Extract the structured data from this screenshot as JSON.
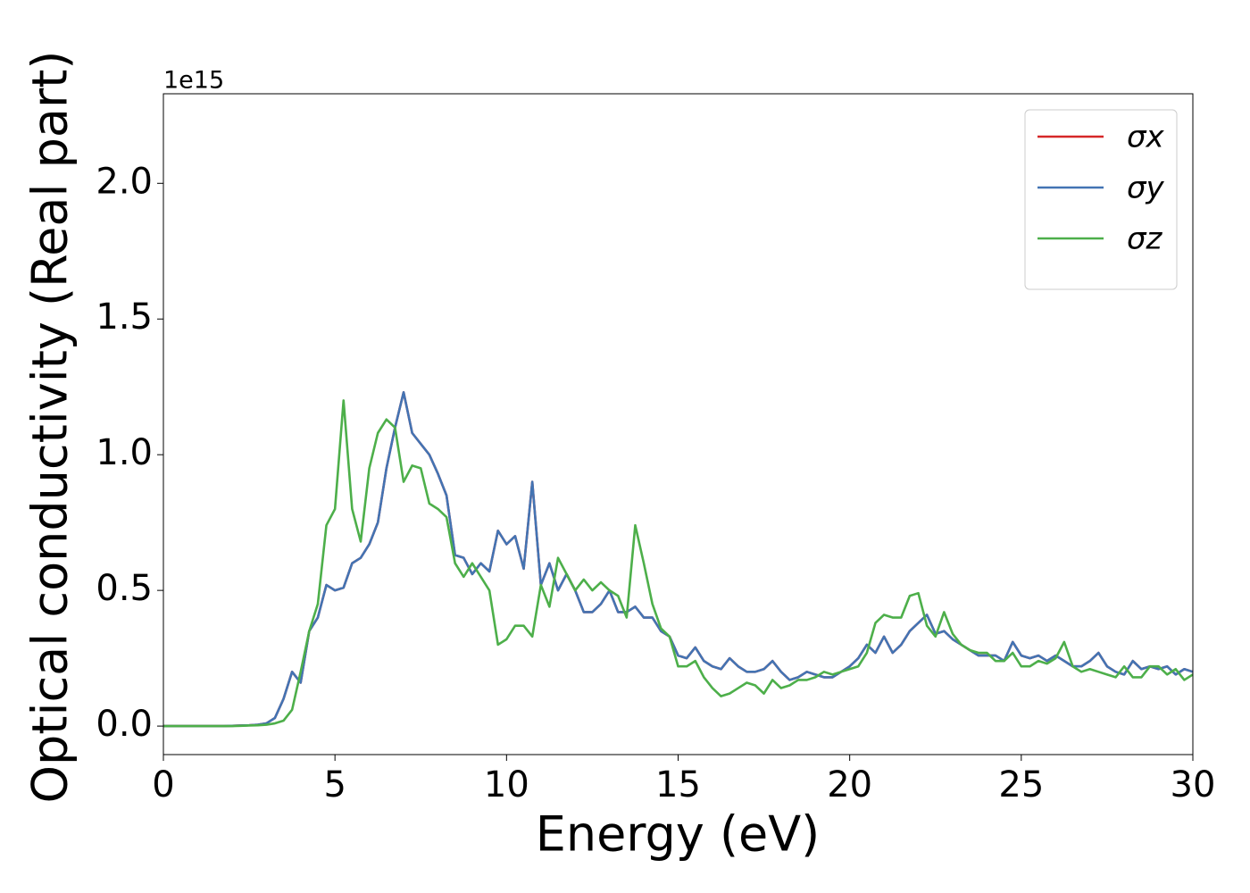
{
  "chart_data": {
    "type": "line",
    "xlabel": "Energy (eV)",
    "ylabel": "Optical conductivity (Real part)",
    "y_offset_label": "1e15",
    "xlim": [
      0,
      30
    ],
    "ylim": [
      -0.105,
      2.33
    ],
    "xticks": [
      0,
      5,
      10,
      15,
      20,
      25,
      30
    ],
    "yticks": [
      {
        "value": 0,
        "label": "0.0"
      },
      0.5,
      {
        "value": 1,
        "label": "1.0"
      },
      1.5,
      {
        "value": 2,
        "label": "2.0"
      }
    ],
    "legend": "upper right",
    "x": [
      0,
      0.25,
      0.5,
      0.75,
      1,
      1.25,
      1.5,
      1.75,
      2,
      2.25,
      2.5,
      2.75,
      3,
      3.25,
      3.5,
      3.75,
      4,
      4.25,
      4.5,
      4.75,
      5,
      5.25,
      5.5,
      5.75,
      6,
      6.25,
      6.5,
      6.75,
      7,
      7.25,
      7.5,
      7.75,
      8,
      8.25,
      8.5,
      8.75,
      9,
      9.25,
      9.5,
      9.75,
      10,
      10.25,
      10.5,
      10.75,
      11,
      11.25,
      11.5,
      11.75,
      12,
      12.25,
      12.5,
      12.75,
      13,
      13.25,
      13.5,
      13.75,
      14,
      14.25,
      14.5,
      14.75,
      15,
      15.25,
      15.5,
      15.75,
      16,
      16.25,
      16.5,
      16.75,
      17,
      17.25,
      17.5,
      17.75,
      18,
      18.25,
      18.5,
      18.75,
      19,
      19.25,
      19.5,
      19.75,
      20,
      20.25,
      20.5,
      20.75,
      21,
      21.25,
      21.5,
      21.75,
      22,
      22.25,
      22.5,
      22.75,
      23,
      23.25,
      23.5,
      23.75,
      24,
      24.25,
      24.5,
      24.75,
      25,
      25.25,
      25.5,
      25.75,
      26,
      26.25,
      26.5,
      26.75,
      27,
      27.25,
      27.5,
      27.75,
      28,
      28.25,
      28.5,
      28.75,
      29,
      29.25,
      29.5,
      29.75,
      30
    ],
    "series": [
      {
        "name": "σx",
        "color": "#d62728",
        "values": [
          0,
          0,
          0,
          0,
          0,
          0,
          0,
          0,
          0.001,
          0.002,
          0.003,
          0.005,
          0.01,
          0.03,
          0.1,
          0.2,
          0.16,
          0.35,
          0.4,
          0.52,
          0.5,
          0.51,
          0.6,
          0.62,
          0.67,
          0.75,
          0.95,
          1.1,
          1.23,
          1.08,
          1.04,
          1.0,
          0.93,
          0.85,
          0.63,
          0.62,
          0.56,
          0.6,
          0.57,
          0.72,
          0.67,
          0.7,
          0.58,
          0.9,
          0.52,
          0.6,
          0.5,
          0.56,
          0.5,
          0.42,
          0.42,
          0.45,
          0.5,
          0.42,
          0.42,
          0.44,
          0.4,
          0.4,
          0.35,
          0.33,
          0.26,
          0.25,
          0.29,
          0.24,
          0.22,
          0.21,
          0.25,
          0.22,
          0.2,
          0.2,
          0.21,
          0.24,
          0.2,
          0.17,
          0.18,
          0.2,
          0.19,
          0.18,
          0.18,
          0.2,
          0.22,
          0.25,
          0.3,
          0.27,
          0.33,
          0.27,
          0.3,
          0.35,
          0.38,
          0.41,
          0.34,
          0.35,
          0.32,
          0.3,
          0.28,
          0.26,
          0.26,
          0.26,
          0.24,
          0.31,
          0.26,
          0.25,
          0.26,
          0.24,
          0.26,
          0.24,
          0.22,
          0.22,
          0.24,
          0.27,
          0.22,
          0.2,
          0.19,
          0.24,
          0.21,
          0.22,
          0.21,
          0.22,
          0.19,
          0.21,
          0.2
        ]
      },
      {
        "name": "σy",
        "color": "#4374b3",
        "values": [
          0,
          0,
          0,
          0,
          0,
          0,
          0,
          0,
          0.001,
          0.002,
          0.003,
          0.005,
          0.01,
          0.03,
          0.1,
          0.2,
          0.16,
          0.35,
          0.4,
          0.52,
          0.5,
          0.51,
          0.6,
          0.62,
          0.67,
          0.75,
          0.95,
          1.1,
          1.23,
          1.08,
          1.04,
          1.0,
          0.93,
          0.85,
          0.63,
          0.62,
          0.56,
          0.6,
          0.57,
          0.72,
          0.67,
          0.7,
          0.58,
          0.9,
          0.52,
          0.6,
          0.5,
          0.56,
          0.5,
          0.42,
          0.42,
          0.45,
          0.5,
          0.42,
          0.42,
          0.44,
          0.4,
          0.4,
          0.35,
          0.33,
          0.26,
          0.25,
          0.29,
          0.24,
          0.22,
          0.21,
          0.25,
          0.22,
          0.2,
          0.2,
          0.21,
          0.24,
          0.2,
          0.17,
          0.18,
          0.2,
          0.19,
          0.18,
          0.18,
          0.2,
          0.22,
          0.25,
          0.3,
          0.27,
          0.33,
          0.27,
          0.3,
          0.35,
          0.38,
          0.41,
          0.34,
          0.35,
          0.32,
          0.3,
          0.28,
          0.26,
          0.26,
          0.26,
          0.24,
          0.31,
          0.26,
          0.25,
          0.26,
          0.24,
          0.26,
          0.24,
          0.22,
          0.22,
          0.24,
          0.27,
          0.22,
          0.2,
          0.19,
          0.24,
          0.21,
          0.22,
          0.21,
          0.22,
          0.19,
          0.21,
          0.2
        ]
      },
      {
        "name": "σz",
        "color": "#4daf4a",
        "values": [
          0,
          0,
          0,
          0,
          0,
          0,
          0,
          0,
          0,
          0.001,
          0.002,
          0.003,
          0.005,
          0.01,
          0.02,
          0.06,
          0.2,
          0.35,
          0.45,
          0.74,
          0.8,
          1.2,
          0.8,
          0.68,
          0.95,
          1.08,
          1.13,
          1.1,
          0.9,
          0.96,
          0.95,
          0.82,
          0.8,
          0.77,
          0.6,
          0.55,
          0.6,
          0.55,
          0.5,
          0.3,
          0.32,
          0.37,
          0.37,
          0.33,
          0.52,
          0.44,
          0.62,
          0.56,
          0.5,
          0.54,
          0.5,
          0.53,
          0.5,
          0.48,
          0.4,
          0.74,
          0.6,
          0.45,
          0.36,
          0.33,
          0.22,
          0.22,
          0.24,
          0.18,
          0.14,
          0.11,
          0.12,
          0.14,
          0.16,
          0.15,
          0.12,
          0.17,
          0.14,
          0.15,
          0.17,
          0.17,
          0.18,
          0.2,
          0.19,
          0.2,
          0.21,
          0.22,
          0.27,
          0.38,
          0.41,
          0.4,
          0.4,
          0.48,
          0.49,
          0.37,
          0.33,
          0.42,
          0.34,
          0.3,
          0.28,
          0.27,
          0.27,
          0.24,
          0.24,
          0.27,
          0.22,
          0.22,
          0.24,
          0.23,
          0.25,
          0.31,
          0.22,
          0.2,
          0.21,
          0.2,
          0.19,
          0.18,
          0.22,
          0.18,
          0.18,
          0.22,
          0.22,
          0.19,
          0.21,
          0.17,
          0.19
        ]
      }
    ]
  }
}
